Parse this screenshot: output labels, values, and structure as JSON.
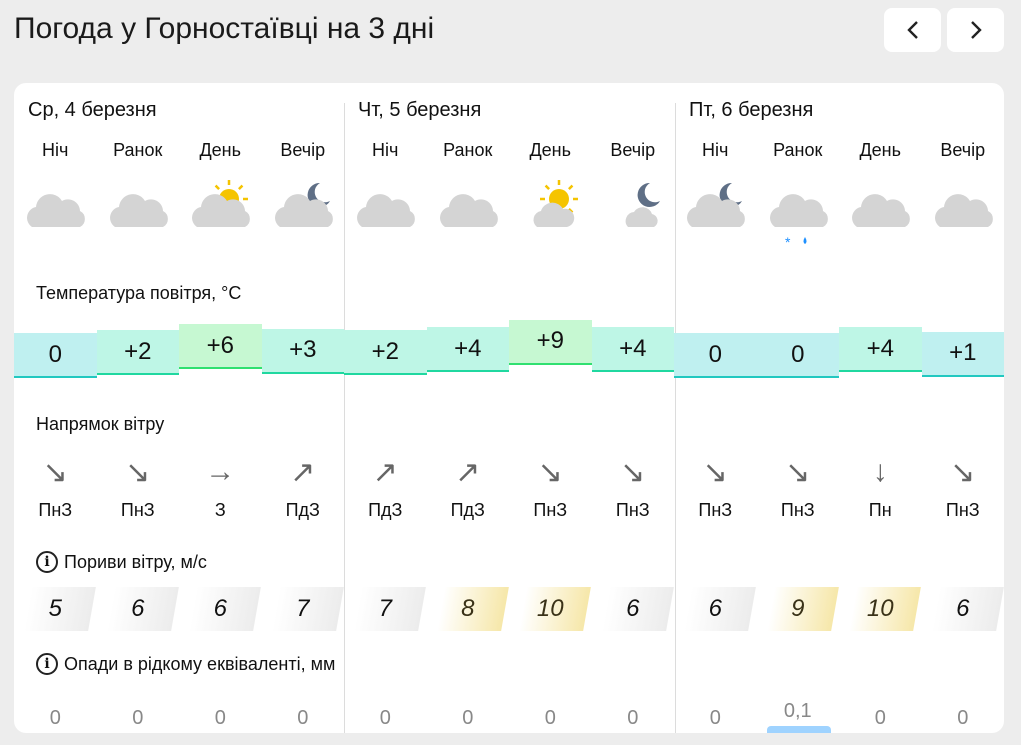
{
  "header": {
    "title": "Погода у Горностаївці на 3 дні",
    "prev_icon": "chevron-left-icon",
    "next_icon": "chevron-right-icon"
  },
  "days": [
    {
      "label": "Ср, 4 березня"
    },
    {
      "label": "Чт, 5 березня"
    },
    {
      "label": "Пт, 6 березня"
    }
  ],
  "periods": [
    "Ніч",
    "Ранок",
    "День",
    "Вечір",
    "Ніч",
    "Ранок",
    "День",
    "Вечір",
    "Ніч",
    "Ранок",
    "День",
    "Вечір"
  ],
  "icons": [
    "cloudy",
    "cloudy",
    "partly-sunny",
    "partly-moon",
    "cloudy",
    "cloudy",
    "sunny-cloud",
    "moon-cloud",
    "partly-moon",
    "cloudy-snow-rain",
    "cloudy",
    "cloudy"
  ],
  "sections": {
    "temperature": "Температура повітря, °C",
    "wind_direction": "Напрямок вітру",
    "gusts": "Пориви вітру, м/с",
    "precipitation": "Опади в рідкому еквіваленті, мм"
  },
  "temperature": [
    "0",
    "+2",
    "+6",
    "+3",
    "+2",
    "+4",
    "+9",
    "+4",
    "0",
    "0",
    "+4",
    "+1"
  ],
  "wind": [
    {
      "arrow": "↘",
      "label": "ПнЗ"
    },
    {
      "arrow": "↘",
      "label": "ПнЗ"
    },
    {
      "arrow": "→",
      "label": "З"
    },
    {
      "arrow": "↗",
      "label": "ПдЗ"
    },
    {
      "arrow": "↗",
      "label": "ПдЗ"
    },
    {
      "arrow": "↗",
      "label": "ПдЗ"
    },
    {
      "arrow": "↘",
      "label": "ПнЗ"
    },
    {
      "arrow": "↘",
      "label": "ПнЗ"
    },
    {
      "arrow": "↘",
      "label": "ПнЗ"
    },
    {
      "arrow": "↘",
      "label": "ПнЗ"
    },
    {
      "arrow": "↓",
      "label": "Пн"
    },
    {
      "arrow": "↘",
      "label": "ПнЗ"
    }
  ],
  "gusts": [
    "5",
    "6",
    "6",
    "7",
    "7",
    "8",
    "10",
    "6",
    "6",
    "9",
    "10",
    "6"
  ],
  "precipitation": [
    "0",
    "0",
    "0",
    "0",
    "0",
    "0",
    "0",
    "0",
    "0",
    "0,1",
    "0",
    "0"
  ],
  "colors": {
    "cold": "#bff0f0",
    "mild": "#bef6e6",
    "warm": "#c6f8d2",
    "gust_normal": "#ececec",
    "gust_strong": "#f6e7a9",
    "rain": "#9fd3ff"
  }
}
